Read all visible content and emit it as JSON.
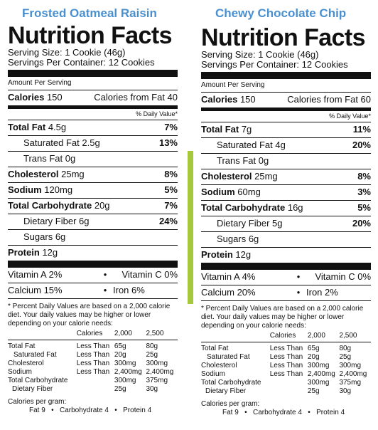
{
  "labels": [
    {
      "product": "Frosted Oatmeal Raisin",
      "heading": "Nutrition Facts",
      "serving_size": "Serving Size: 1 Cookie (46g)",
      "servings_per_container": "Servings Per Container: 12 Cookies",
      "amount_per_serving": "Amount Per Serving",
      "calories_label": "Calories",
      "calories_value": "150",
      "calories_from_fat": "Calories from Fat 40",
      "daily_value_header": "% Daily Value*",
      "nutrients": [
        {
          "name": "Total Fat",
          "amount": "4.5g",
          "dv": "7%"
        },
        {
          "name": "Saturated Fat",
          "amount": "2.5g",
          "dv": "13%"
        },
        {
          "name": "Trans Fat",
          "amount": "0g",
          "dv": ""
        },
        {
          "name": "Cholesterol",
          "amount": "25mg",
          "dv": "8%"
        },
        {
          "name": "Sodium",
          "amount": "120mg",
          "dv": "5%"
        },
        {
          "name": "Total Carbohydrate",
          "amount": "20g",
          "dv": "7%"
        },
        {
          "name": "Dietary Fiber",
          "amount": "6g",
          "dv": "24%"
        },
        {
          "name": "Sugars",
          "amount": "6g",
          "dv": ""
        },
        {
          "name": "Protein",
          "amount": "12g",
          "dv": ""
        }
      ],
      "vitamins": [
        {
          "left": "Vitamin A 2%",
          "right": "Vitamin C 0%"
        },
        {
          "left": "Calcium 15%",
          "right": "Iron 6%"
        }
      ]
    },
    {
      "product": "Chewy Chocolate Chip",
      "heading": "Nutrition Facts",
      "serving_size": "Serving Size: 1 Cookie (46g)",
      "servings_per_container": "Servings Per Container: 12 Cookies",
      "amount_per_serving": "Amount Per Serving",
      "calories_label": "Calories",
      "calories_value": "150",
      "calories_from_fat": "Calories from Fat 60",
      "daily_value_header": "% Daily Value*",
      "nutrients": [
        {
          "name": "Total Fat",
          "amount": "7g",
          "dv": "11%"
        },
        {
          "name": "Saturated Fat",
          "amount": "4g",
          "dv": "20%"
        },
        {
          "name": "Trans Fat",
          "amount": "0g",
          "dv": ""
        },
        {
          "name": "Cholesterol",
          "amount": "25mg",
          "dv": "8%"
        },
        {
          "name": "Sodium",
          "amount": "60mg",
          "dv": "3%"
        },
        {
          "name": "Total Carbohydrate",
          "amount": "16g",
          "dv": "5%"
        },
        {
          "name": "Dietary Fiber",
          "amount": "5g",
          "dv": "20%"
        },
        {
          "name": "Sugars",
          "amount": "6g",
          "dv": ""
        },
        {
          "name": "Protein",
          "amount": "12g",
          "dv": ""
        }
      ],
      "vitamins": [
        {
          "left": "Vitamin A 4%",
          "right": "Vitamin C 0%"
        },
        {
          "left": "Calcium 20%",
          "right": "Iron 2%"
        }
      ]
    }
  ],
  "footnote": "* Percent Daily Values are based on a 2,000 calorie diet. Your daily values may be higher or lower depending on your calorie needs:",
  "footnote_table": {
    "header": [
      "Calories",
      "2,000",
      "2,500"
    ],
    "rows": [
      [
        "Total Fat",
        "Less Than",
        "65g",
        "80g"
      ],
      [
        "Saturated Fat",
        "Less Than",
        "20g",
        "25g"
      ],
      [
        "Cholesterol",
        "Less Than",
        "300mg",
        "300mg"
      ],
      [
        "Sodium",
        "Less Than",
        "2,400mg",
        "2,400mg"
      ],
      [
        "Total Carbohydrate",
        "",
        "300mg",
        "375mg"
      ],
      [
        "Dietary Fiber",
        "",
        "25g",
        "30g"
      ]
    ]
  },
  "calories_per_gram_title": "Calories per gram:",
  "calories_per_gram": [
    "Fat 9",
    "Carbohydrate 4",
    "Protein 4"
  ],
  "bullet": "•",
  "accent_colors": {
    "title_blue": "#4a90d0",
    "divider_green": "#a6c93c"
  }
}
